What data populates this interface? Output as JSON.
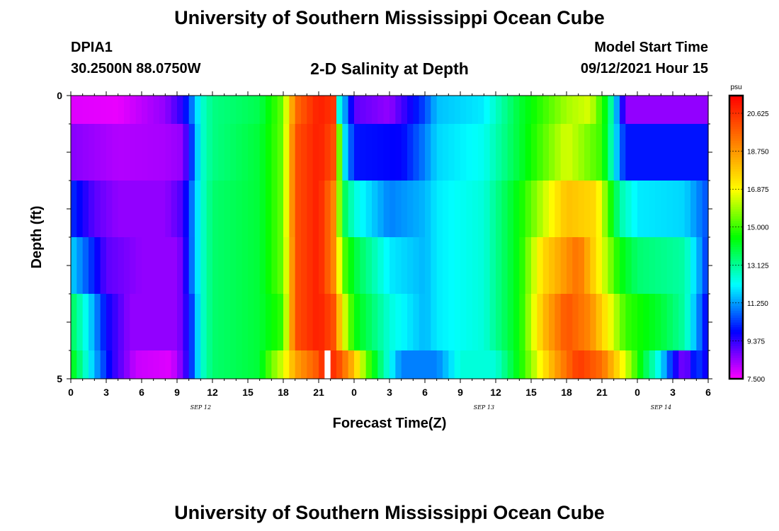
{
  "header": {
    "title_top": "University of Southern Mississippi Ocean Cube",
    "title_bottom": "University of Southern Mississippi Ocean Cube",
    "station_id": "DPIA1",
    "coordinates": "30.2500N  88.0750W",
    "plot_title": "2-D Salinity at Depth",
    "model_label": "Model Start Time",
    "model_time": "09/12/2021 Hour 15"
  },
  "chart_data": {
    "type": "heatmap",
    "title": "2-D Salinity at Depth",
    "xlabel": "Forecast Time(Z)",
    "ylabel": "Depth (ft)",
    "x_tick_labels": [
      "0",
      "3",
      "6",
      "9",
      "12",
      "15",
      "18",
      "21",
      "0",
      "3",
      "6",
      "9",
      "12",
      "15",
      "18",
      "21",
      "0",
      "3",
      "6"
    ],
    "date_labels": [
      {
        "text": "SEP 12",
        "at_hour": 11
      },
      {
        "text": "SEP 13",
        "at_hour": 35
      },
      {
        "text": "SEP 14",
        "at_hour": 50
      }
    ],
    "x_range_hours": [
      0,
      54
    ],
    "y_range_ft": [
      0,
      5
    ],
    "y_tick_labels": [
      "0",
      "5"
    ],
    "depth_levels_ft": [
      0,
      0.5,
      1.5,
      2.5,
      3.5,
      4.5
    ],
    "colorbar": {
      "unit": "psu",
      "min": 7.5,
      "max": 21.5,
      "tick_labels": [
        "20.625",
        "18.750",
        "16.875",
        "15.000",
        "13.125",
        "11.250",
        "9.375",
        "7.500"
      ],
      "tick_values": [
        20.625,
        18.75,
        16.875,
        15.0,
        13.125,
        11.25,
        9.375,
        7.5
      ],
      "colors": [
        "#ff00ff",
        "#8000ff",
        "#0000ff",
        "#0080ff",
        "#00ffff",
        "#00ff80",
        "#00ff00",
        "#80ff00",
        "#ffff00",
        "#ffc000",
        "#ff8000",
        "#ff4000",
        "#ff0000"
      ]
    },
    "time_step_hours": 0.5,
    "rows": [
      {
        "depth": "0 - 0.5 ft",
        "keyframes": [
          [
            0,
            7.8
          ],
          [
            4,
            7.7
          ],
          [
            8,
            8.5
          ],
          [
            9.5,
            9.5
          ],
          [
            10.3,
            11.0
          ],
          [
            11,
            12.5
          ],
          [
            12,
            13.3
          ],
          [
            16,
            13.8
          ],
          [
            18,
            15.5
          ],
          [
            19,
            19.5
          ],
          [
            21,
            21.0
          ],
          [
            22.3,
            20.5
          ],
          [
            22.8,
            11.5
          ],
          [
            23,
            12.0
          ],
          [
            24,
            9.0
          ],
          [
            27,
            8.5
          ],
          [
            30,
            10.5
          ],
          [
            31,
            11.6
          ],
          [
            35,
            12.0
          ],
          [
            38,
            14.0
          ],
          [
            42,
            16.0
          ],
          [
            44,
            16.5
          ],
          [
            45.5,
            14.0
          ],
          [
            46.5,
            10.5
          ],
          [
            47,
            8.5
          ],
          [
            54,
            8.5
          ]
        ]
      },
      {
        "depth": "0.5 - 1.5 ft",
        "keyframes": [
          [
            0,
            8.6
          ],
          [
            4,
            8.2
          ],
          [
            8,
            8.3
          ],
          [
            9.5,
            8.5
          ],
          [
            10.3,
            10.5
          ],
          [
            11,
            12.5
          ],
          [
            12,
            13.3
          ],
          [
            16,
            14.0
          ],
          [
            18,
            15.5
          ],
          [
            19,
            20.0
          ],
          [
            21,
            21.0
          ],
          [
            22.3,
            20.0
          ],
          [
            22.8,
            15.0
          ],
          [
            23.2,
            12.0
          ],
          [
            24,
            10.0
          ],
          [
            28,
            9.8
          ],
          [
            30,
            11.0
          ],
          [
            31,
            11.8
          ],
          [
            35,
            12.3
          ],
          [
            38,
            14.0
          ],
          [
            42,
            16.5
          ],
          [
            45,
            15.0
          ],
          [
            46.5,
            11.0
          ],
          [
            47,
            10.0
          ],
          [
            54,
            10.0
          ]
        ]
      },
      {
        "depth": "1.5 - 2.5 ft",
        "keyframes": [
          [
            0,
            10.3
          ],
          [
            2,
            9.0
          ],
          [
            4,
            8.5
          ],
          [
            8,
            8.5
          ],
          [
            9.5,
            9.2
          ],
          [
            10.3,
            11.0
          ],
          [
            11,
            12.5
          ],
          [
            12,
            13.5
          ],
          [
            16,
            14.0
          ],
          [
            18,
            15.5
          ],
          [
            19,
            20.0
          ],
          [
            21,
            21.0
          ],
          [
            22.3,
            19.0
          ],
          [
            23,
            14.0
          ],
          [
            24,
            12.5
          ],
          [
            27,
            11.0
          ],
          [
            30,
            11.5
          ],
          [
            31,
            12.0
          ],
          [
            35,
            12.5
          ],
          [
            38,
            14.5
          ],
          [
            42,
            18.0
          ],
          [
            44.5,
            17.5
          ],
          [
            46.5,
            13.0
          ],
          [
            48,
            12.0
          ],
          [
            52,
            11.8
          ],
          [
            54,
            10.5
          ]
        ]
      },
      {
        "depth": "2.5 - 3.5 ft",
        "keyframes": [
          [
            0,
            11.8
          ],
          [
            1.5,
            10.5
          ],
          [
            3,
            9.0
          ],
          [
            6,
            8.5
          ],
          [
            9,
            8.5
          ],
          [
            9.5,
            9.0
          ],
          [
            10.3,
            11.0
          ],
          [
            11,
            12.5
          ],
          [
            12,
            13.5
          ],
          [
            16,
            14.0
          ],
          [
            18,
            15.5
          ],
          [
            18.5,
            17.5
          ],
          [
            19,
            20.0
          ],
          [
            21,
            21.0
          ],
          [
            22.3,
            19.0
          ],
          [
            23,
            15.5
          ],
          [
            24,
            14.0
          ],
          [
            27,
            12.0
          ],
          [
            30,
            11.5
          ],
          [
            31,
            12.0
          ],
          [
            35,
            12.5
          ],
          [
            38,
            14.5
          ],
          [
            40,
            17.5
          ],
          [
            43,
            19.5
          ],
          [
            46.5,
            14.5
          ],
          [
            48,
            13.5
          ],
          [
            52,
            13.0
          ],
          [
            53.5,
            11.0
          ],
          [
            54,
            10.0
          ]
        ]
      },
      {
        "depth": "3.5 - 4.5 ft",
        "keyframes": [
          [
            0,
            13.8
          ],
          [
            1.5,
            12.0
          ],
          [
            3,
            9.8
          ],
          [
            5,
            8.5
          ],
          [
            9,
            8.5
          ],
          [
            9.5,
            9.0
          ],
          [
            10.3,
            10.5
          ],
          [
            11,
            12.5
          ],
          [
            12,
            13.5
          ],
          [
            16,
            14.0
          ],
          [
            18,
            15.0
          ],
          [
            18.5,
            17.5
          ],
          [
            19,
            20.0
          ],
          [
            21,
            21.0
          ],
          [
            22.3,
            20.0
          ],
          [
            23,
            17.0
          ],
          [
            24,
            14.5
          ],
          [
            27,
            12.5
          ],
          [
            30,
            11.5
          ],
          [
            31,
            12.0
          ],
          [
            35,
            12.5
          ],
          [
            38,
            14.5
          ],
          [
            40,
            18.0
          ],
          [
            42,
            20.0
          ],
          [
            44,
            19.0
          ],
          [
            47,
            15.0
          ],
          [
            50,
            14.0
          ],
          [
            52,
            13.0
          ],
          [
            53.5,
            10.5
          ],
          [
            54,
            9.5
          ]
        ]
      },
      {
        "depth": "4.5 - 5 ft",
        "keyframes": [
          [
            0,
            14.5
          ],
          [
            1,
            13.0
          ],
          [
            2,
            11.5
          ],
          [
            3.5,
            9.5
          ],
          [
            5.5,
            8.0
          ],
          [
            8.5,
            7.8
          ],
          [
            9.5,
            8.8
          ],
          [
            10.3,
            10.5
          ],
          [
            11,
            12.5
          ],
          [
            12,
            13.5
          ],
          [
            16,
            14.0
          ],
          [
            17,
            15.5
          ],
          [
            18,
            16.5
          ],
          [
            19,
            18.5
          ],
          [
            21,
            20.0
          ],
          [
            21.5,
            21.0
          ],
          [
            22.5,
            20.5
          ],
          [
            24,
            18.0
          ],
          [
            25,
            15.5
          ],
          [
            26.5,
            13.0
          ],
          [
            28,
            11.0
          ],
          [
            31,
            11.0
          ],
          [
            33,
            12.5
          ],
          [
            36,
            12.5
          ],
          [
            38,
            14.5
          ],
          [
            41,
            18.5
          ],
          [
            43,
            20.5
          ],
          [
            45,
            19.5
          ],
          [
            47,
            16.5
          ],
          [
            48.5,
            14.0
          ],
          [
            50,
            12.0
          ],
          [
            51,
            10.0
          ],
          [
            52,
            8.5
          ],
          [
            53,
            10.5
          ],
          [
            54,
            9.5
          ]
        ]
      }
    ],
    "missing_data": {
      "hour_start": 21.5,
      "hour_end": 22.0,
      "depth_row": "4.5 - 5 ft"
    }
  }
}
